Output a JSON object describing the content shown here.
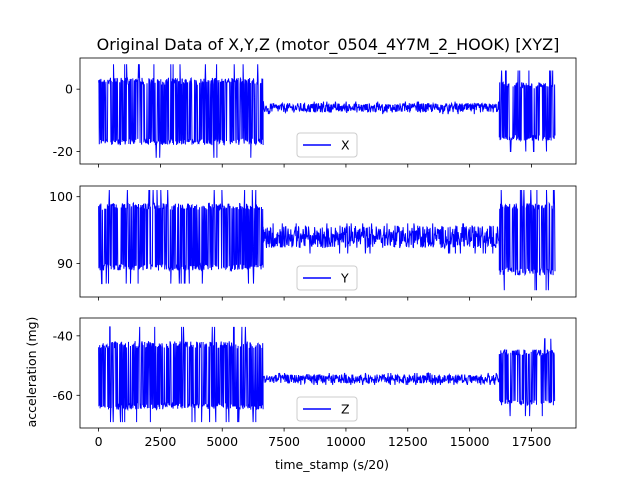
{
  "chart_data": {
    "title": "Original Data of X,Y,Z (motor_0504_4Y7M_2_HOOK) [XYZ]",
    "xlabel": "time_stamp (s/20)",
    "xlim": [
      -750,
      19300
    ],
    "xticks": [
      0,
      2500,
      5000,
      7500,
      10000,
      12500,
      15000,
      17500
    ],
    "x_range": [
      0,
      18450
    ],
    "grid": false,
    "charts": [
      {
        "type": "line",
        "series": [
          {
            "name": "X",
            "color": "#0000ff"
          }
        ],
        "ylabel": "",
        "ylim": [
          -24,
          10
        ],
        "yticks": [
          0,
          -20
        ],
        "legend_position": "bottom-center",
        "segments": [
          {
            "x": [
              0,
              6650
            ],
            "center": -7.5,
            "min": -22,
            "max": 8
          },
          {
            "x": [
              6650,
              16200
            ],
            "center": -6,
            "min": -8,
            "max": -4
          },
          {
            "x": [
              16200,
              18450
            ],
            "center": -7.5,
            "min": -20,
            "max": 6
          }
        ]
      },
      {
        "type": "line",
        "series": [
          {
            "name": "Y",
            "color": "#0000ff"
          }
        ],
        "ylabel": "",
        "ylim": [
          85,
          101.6
        ],
        "yticks": [
          90,
          100
        ],
        "legend_position": "bottom-center",
        "segments": [
          {
            "x": [
              0,
              6650
            ],
            "center": 94,
            "min": 87,
            "max": 101
          },
          {
            "x": [
              6650,
              16200
            ],
            "center": 94,
            "min": 91.5,
            "max": 96
          },
          {
            "x": [
              16200,
              18450
            ],
            "center": 94,
            "min": 86,
            "max": 101
          }
        ]
      },
      {
        "type": "line",
        "series": [
          {
            "name": "Z",
            "color": "#0000ff"
          }
        ],
        "ylabel": "acceleration (mg)",
        "ylim": [
          -71,
          -34
        ],
        "yticks": [
          -40,
          -60
        ],
        "legend_position": "bottom-center",
        "segments": [
          {
            "x": [
              0,
              6650
            ],
            "center": -54,
            "min": -69,
            "max": -37
          },
          {
            "x": [
              6650,
              16200
            ],
            "center": -54.5,
            "min": -56.5,
            "max": -52.5
          },
          {
            "x": [
              16200,
              18450
            ],
            "center": -54,
            "min": -67,
            "max": -41
          }
        ]
      }
    ]
  }
}
